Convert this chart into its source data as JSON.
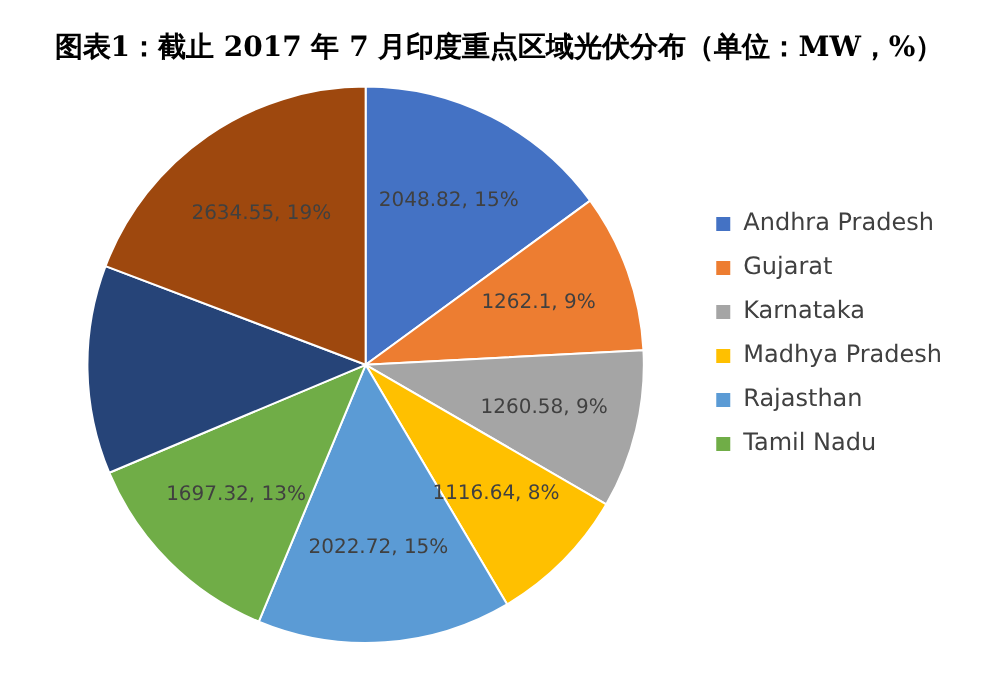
{
  "chart_data": {
    "type": "pie",
    "title": "图表1：截止 2017 年 7 月印度重点区域光伏分布（单位：MW，%）",
    "categories": [
      "Andhra Pradesh",
      "Gujarat",
      "Karnataka",
      "Madhya Pradesh",
      "Rajasthan",
      "Tamil Nadu",
      null,
      null
    ],
    "values": [
      2048.82,
      1262.1,
      1260.58,
      1116.64,
      2022.72,
      1697.32,
      1660,
      2634.55
    ],
    "colors": [
      "#4472c4",
      "#ed7d31",
      "#a5a5a5",
      "#ffc000",
      "#5b9bd5",
      "#70ad47",
      "#264478",
      "#9e480e"
    ],
    "value_labels": [
      "2048.82, 15%",
      "1262.1, 9%",
      "1260.58, 9%",
      "1116.64, 8%",
      "2022.72, 15%",
      "1697.32, 13%",
      null,
      "2634.55, 19%"
    ],
    "legend": "right"
  }
}
